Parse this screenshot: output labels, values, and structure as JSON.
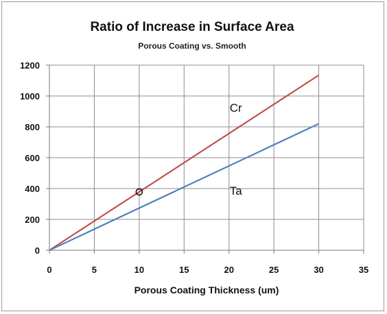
{
  "chart_data": {
    "type": "line",
    "title": "Ratio of Increase in Surface Area",
    "subtitle": "Porous Coating vs. Smooth",
    "xlabel": "Porous Coating Thickness (um)",
    "ylabel": "",
    "xlim": [
      0,
      35
    ],
    "ylim": [
      0,
      1200
    ],
    "x_ticks": [
      "0",
      "5",
      "10",
      "15",
      "20",
      "25",
      "30",
      "35"
    ],
    "y_ticks": [
      "0",
      "200",
      "400",
      "600",
      "800",
      "1000",
      "1200"
    ],
    "grid": true,
    "legend": "none",
    "series": [
      {
        "name": "Cr",
        "color": "#c0504d",
        "x": [
          0,
          30
        ],
        "y": [
          0,
          1135
        ]
      },
      {
        "name": "Ta",
        "color": "#4f81bd",
        "x": [
          0,
          30
        ],
        "y": [
          0,
          820
        ]
      }
    ],
    "marker": {
      "x": 10,
      "y": 378,
      "shape": "open-circle"
    }
  }
}
